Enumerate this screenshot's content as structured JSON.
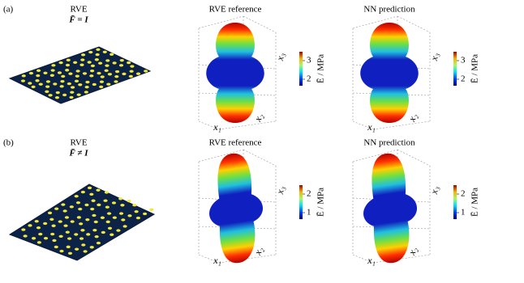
{
  "panels": [
    {
      "label": "(a)",
      "rve": {
        "title": "RVE",
        "formula": "F̄ = I"
      },
      "plots": [
        {
          "title": "RVE reference",
          "axes": [
            "x₁",
            "x₂",
            "x₃"
          ],
          "colorbar": {
            "ticks": [
              2,
              3
            ],
            "label": "Ē / MPa"
          }
        },
        {
          "title": "NN prediction",
          "axes": [
            "x₁",
            "x₂",
            "x₃"
          ],
          "colorbar": {
            "ticks": [
              2,
              3
            ],
            "label": "Ē / MPa"
          }
        }
      ]
    },
    {
      "label": "(b)",
      "rve": {
        "title": "RVE",
        "formula": "F̄ ≠ I"
      },
      "plots": [
        {
          "title": "RVE reference",
          "axes": [
            "x₁",
            "x₂",
            "x₃"
          ],
          "colorbar": {
            "ticks": [
              1,
              2
            ],
            "label": "Ē / MPa"
          }
        },
        {
          "title": "NN prediction",
          "axes": [
            "x₁",
            "x₂",
            "x₃"
          ],
          "colorbar": {
            "ticks": [
              1,
              2
            ],
            "label": "Ē / MPa"
          }
        }
      ]
    }
  ]
}
